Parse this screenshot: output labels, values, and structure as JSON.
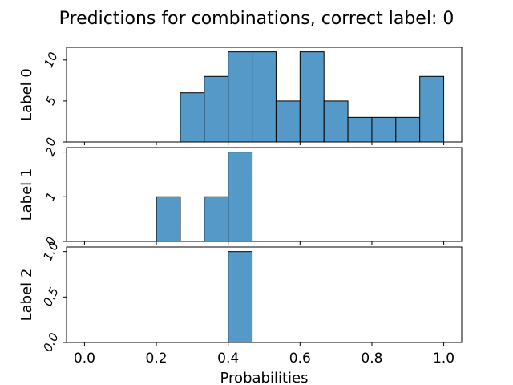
{
  "figure": {
    "title": "Predictions for combinations, correct label: 0"
  },
  "chart_data": [
    {
      "type": "bar",
      "title": "Predictions for combinations, correct label: 0",
      "xlabel": "",
      "ylabel": "Label 0",
      "bin_edges": [
        0.0,
        0.0667,
        0.1333,
        0.2,
        0.2667,
        0.3333,
        0.4,
        0.4667,
        0.5333,
        0.6,
        0.6667,
        0.7333,
        0.8,
        0.8667,
        0.9333,
        1.0
      ],
      "values": [
        0,
        0,
        0,
        0,
        6,
        8,
        11,
        11,
        5,
        11,
        5,
        3,
        3,
        3,
        8
      ],
      "xlim": [
        -0.05,
        1.05
      ],
      "ylim": [
        0,
        11.55
      ],
      "y_ticks": [
        {
          "value": 0,
          "label": "0"
        },
        {
          "value": 5,
          "label": "5"
        },
        {
          "value": 10,
          "label": "10"
        }
      ],
      "bar_color": "#5499c7",
      "edge_color": "#000000"
    },
    {
      "type": "bar",
      "xlabel": "",
      "ylabel": "Label 1",
      "bin_edges": [
        0.0,
        0.0667,
        0.1333,
        0.2,
        0.2667,
        0.3333,
        0.4,
        0.4667,
        0.5333,
        0.6,
        0.6667,
        0.7333,
        0.8,
        0.8667,
        0.9333,
        1.0
      ],
      "values": [
        0,
        0,
        0,
        1,
        0,
        1,
        2,
        0,
        0,
        0,
        0,
        0,
        0,
        0,
        0
      ],
      "xlim": [
        -0.05,
        1.05
      ],
      "ylim": [
        0,
        2.1
      ],
      "y_ticks": [
        {
          "value": 0,
          "label": "0"
        },
        {
          "value": 1,
          "label": "1"
        },
        {
          "value": 2,
          "label": "2"
        }
      ],
      "bar_color": "#5499c7",
      "edge_color": "#000000"
    },
    {
      "type": "bar",
      "xlabel": "Probabilities",
      "ylabel": "Label 2",
      "bin_edges": [
        0.0,
        0.0667,
        0.1333,
        0.2,
        0.2667,
        0.3333,
        0.4,
        0.4667,
        0.5333,
        0.6,
        0.6667,
        0.7333,
        0.8,
        0.8667,
        0.9333,
        1.0
      ],
      "values": [
        0,
        0,
        0,
        0,
        0,
        0,
        1,
        0,
        0,
        0,
        0,
        0,
        0,
        0,
        0
      ],
      "xlim": [
        -0.05,
        1.05
      ],
      "ylim": [
        0,
        1.05
      ],
      "y_ticks": [
        {
          "value": 0,
          "label": "0.0"
        },
        {
          "value": 0.5,
          "label": "0.5"
        },
        {
          "value": 1,
          "label": "1.0"
        }
      ],
      "x_ticks": [
        {
          "value": 0.0,
          "label": "0.0"
        },
        {
          "value": 0.2,
          "label": "0.2"
        },
        {
          "value": 0.4,
          "label": "0.4"
        },
        {
          "value": 0.6,
          "label": "0.6"
        },
        {
          "value": 0.8,
          "label": "0.8"
        },
        {
          "value": 1.0,
          "label": "1.0"
        }
      ],
      "bar_color": "#5499c7",
      "edge_color": "#000000"
    }
  ]
}
